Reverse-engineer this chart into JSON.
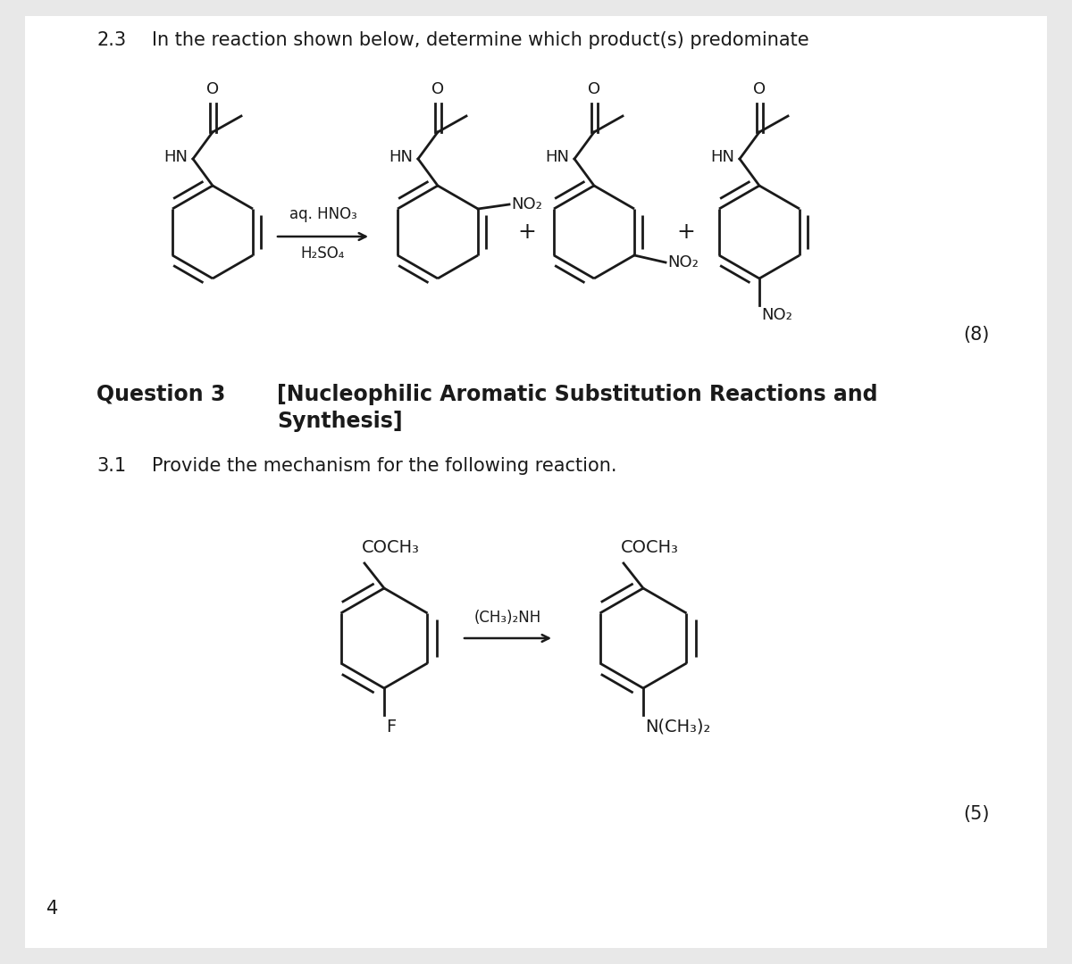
{
  "page_number": "4",
  "bg_color": "#e8e8e8",
  "inner_bg": "#ffffff",
  "text_color": "#1a1a1a",
  "section_23_label": "2.3",
  "section_23_text": "In the reaction shown below, determine which product(s) predominate",
  "reagent_line1": "aq. HNO₃",
  "reagent_line2": "H₂SO₄",
  "score_23": "(8)",
  "question3_label": "Question 3",
  "section_31_label": "3.1",
  "section_31_text": "Provide the mechanism for the following reaction.",
  "reagent_31": "(CH₃)₂NH",
  "score_31": "(5)",
  "font_size_body": 15,
  "font_size_chem": 13,
  "line_width": 2.0
}
